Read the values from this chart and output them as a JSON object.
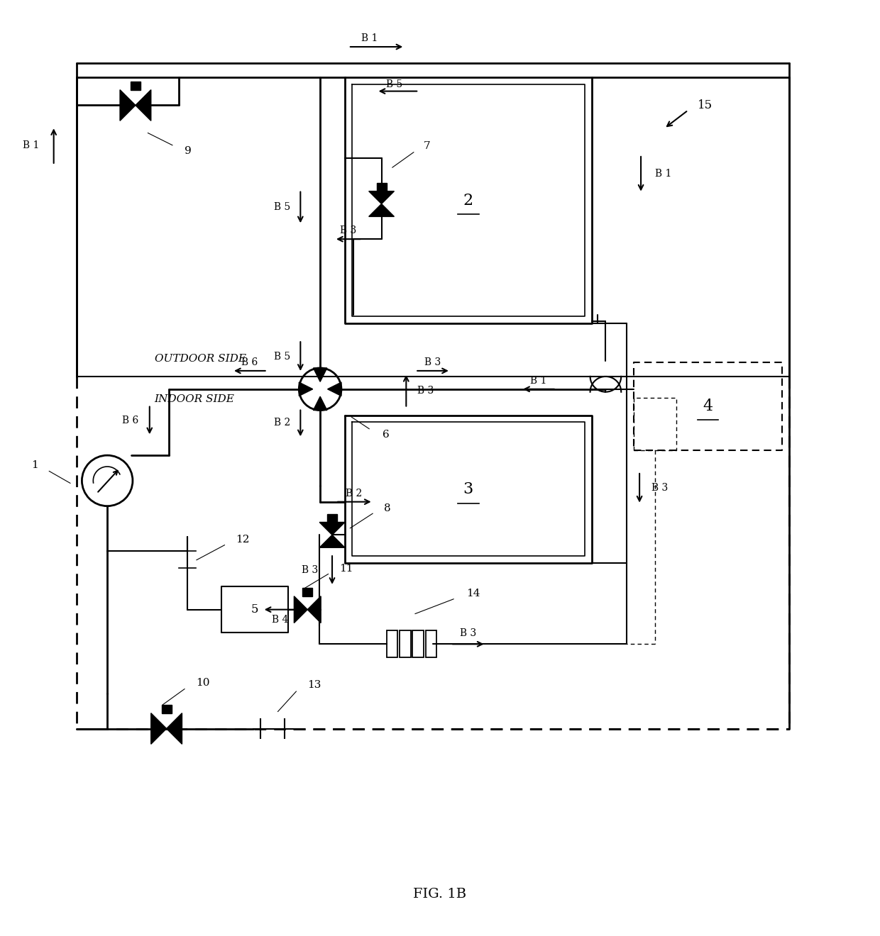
{
  "title": "FIG. 1B",
  "background_color": "#ffffff",
  "line_color": "#000000",
  "fig_width": 12.4,
  "fig_height": 13.2,
  "outdoor_side_text": "OUTDOOR SIDE",
  "indoor_side_text": "INDOOR SIDE"
}
